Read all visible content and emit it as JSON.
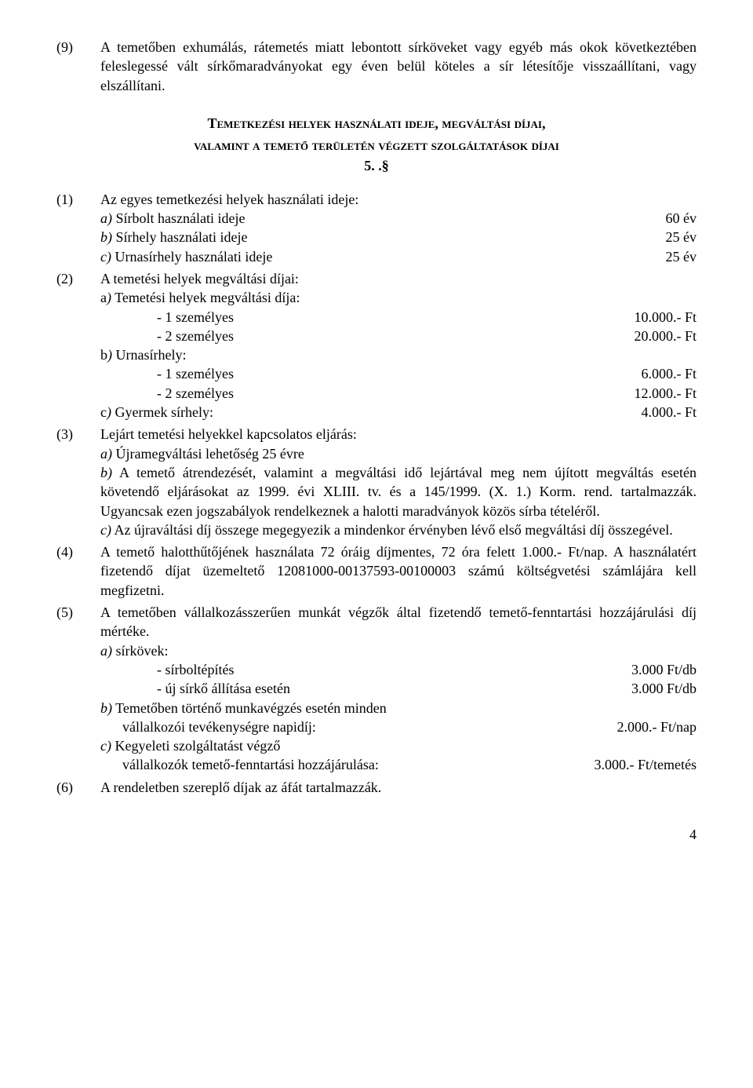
{
  "para9": {
    "num": "(9)",
    "text": "A temetőben exhumálás, rátemetés miatt lebontott sírköveket vagy egyéb más okok következtében feleslegessé vált sírkőmaradványokat egy éven belül köteles a sír létesítője visszaállítani, vagy elszállítani."
  },
  "heading": {
    "line1": "Temetkezési helyek használati ideje, megváltási díjai,",
    "line2": "valamint a temető területén végzett szolgáltatások díjai",
    "num": "5. .§"
  },
  "p1": {
    "num": "(1)",
    "intro": "Az egyes temetkezési helyek használati ideje:",
    "a_label": "a)",
    "a_text": " Sírbolt használati ideje",
    "a_val": "60 év",
    "b_label": "b)",
    "b_text": " Sírhely használati ideje",
    "b_val": "25 év",
    "c_label": "c)",
    "c_text": " Urnasírhely használati ideje",
    "c_val": "25 év"
  },
  "p2": {
    "num": "(2)",
    "intro": "A temetési helyek megváltási díjai:",
    "a_label": "a",
    "a_text_italic": ")",
    "a_text": " Temetési helyek megváltási díja:",
    "a1_text": "- 1 személyes",
    "a1_val": "10.000.- Ft",
    "a2_text": "- 2 személyes",
    "a2_val": "20.000.- Ft",
    "b_label": "b",
    "b_text_italic": ")",
    "b_text": " Urnasírhely:",
    "b1_text": "- 1 személyes",
    "b1_val": "6.000.- Ft",
    "b2_text": "- 2 személyes",
    "b2_val": "12.000.- Ft",
    "c_label": "c",
    "c_text_italic": ")",
    "c_text": " Gyermek sírhely:",
    "c_val": "4.000.- Ft"
  },
  "p3": {
    "num": "(3)",
    "intro": "Lejárt temetési helyekkel kapcsolatos eljárás:",
    "a_label": "a)",
    "a_text": " Újramegváltási lehetőség 25 évre",
    "b_label": "b)",
    "b_text": " A temető átrendezését, valamint a megváltási idő lejártával meg nem újított megváltás esetén követendő eljárásokat az 1999. évi XLIII. tv. és a 145/1999. (X. 1.) Korm. rend. tartalmazzák. Ugyancsak ezen jogszabályok rendelkeznek a halotti maradványok közös sírba tételéről.",
    "c_label": "c)",
    "c_text": " Az újraváltási díj összege megegyezik a mindenkor érvényben lévő első megváltási díj összegével."
  },
  "p4": {
    "num": "(4)",
    "text": "A temető halotthűtőjének használata 72 óráig díjmentes, 72 óra felett 1.000.- Ft/nap. A használatért fizetendő díjat üzemeltető 12081000-00137593-00100003 számú költségvetési számlájára kell megfizetni."
  },
  "p5": {
    "num": "(5)",
    "intro": "A temetőben vállalkozásszerűen munkát végzők által fizetendő temető-fenntartási hozzájárulási díj mértéke.",
    "a_label": "a)",
    "a_text": " sírkövek:",
    "a1_text": "- sírboltépítés",
    "a1_val": "3.000 Ft/db",
    "a2_text": "- új sírkő állítása esetén",
    "a2_val": "3.000 Ft/db",
    "b_label": "b)",
    "b_text": " Temetőben történő munkavégzés esetén minden",
    "b_sub_text": "vállalkozói tevékenységre napidíj:",
    "b_val": "2.000.-  Ft/nap",
    "c_label": "c)",
    "c_text": " Kegyeleti szolgáltatást végző",
    "c_sub_text": "vállalkozók temető-fenntartási hozzájárulása:",
    "c_val": "3.000.- Ft/temetés"
  },
  "p6": {
    "num": "(6)",
    "text": "A rendeletben szereplő díjak az áfát tartalmazzák."
  },
  "pageNumber": "4"
}
